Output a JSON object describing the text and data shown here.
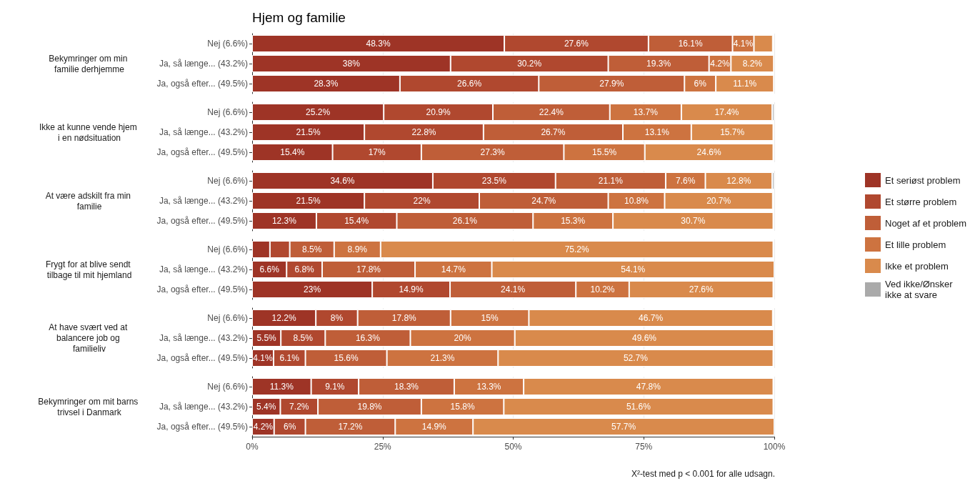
{
  "chart_data": [
    {
      "type": "bar",
      "orientation": "horizontal",
      "stacked": true,
      "title": "Hjem og familie",
      "ylabel": "Bekymringer om min familie derhjemme",
      "categories": [
        "Nej (6.6%)",
        "Ja, så længe... (43.2%)",
        "Ja, også efter... (49.5%)"
      ],
      "xlim": [
        0,
        100
      ],
      "xticks": [
        0,
        25,
        50,
        75,
        100
      ],
      "tick_labels": "y",
      "grid": "x",
      "legend": "right",
      "series": [
        {
          "name": "Et seriøst problem",
          "color": "#9e3426",
          "values": [
            48.3,
            38,
            28.3
          ],
          "value_labels": [
            "48.3%",
            "38%",
            "28.3%"
          ]
        },
        {
          "name": "Et større problem",
          "color": "#b0482f",
          "values": [
            27.6,
            30.2,
            26.6
          ],
          "value_labels": [
            "27.6%",
            "30.2%",
            "26.6%"
          ]
        },
        {
          "name": "Noget af et problem",
          "color": "#bf5e38",
          "values": [
            16.1,
            19.3,
            27.9
          ],
          "value_labels": [
            "16.1%",
            "19.3%",
            "27.9%"
          ]
        },
        {
          "name": "Et lille problem",
          "color": "#cd7340",
          "values": [
            4.1,
            4.2,
            6
          ],
          "value_labels": [
            "4.1%",
            "4.2%",
            "6%"
          ]
        },
        {
          "name": "Ikke et problem",
          "color": "#d98a4c",
          "values": [
            3.6,
            8.2,
            11.1
          ],
          "value_labels": [
            null,
            "8.2%",
            "11.1%"
          ]
        },
        {
          "name": "Ved ikke/Ønsker ikke at svare",
          "color": "#aaaaaa",
          "values": [
            null,
            null,
            null
          ],
          "value_labels": [
            null,
            null,
            null
          ]
        }
      ]
    },
    {
      "type": "bar",
      "orientation": "horizontal",
      "stacked": true,
      "ylabel": "Ikke at kunne vende hjem i en nødsituation",
      "categories": [
        "Nej (6.6%)",
        "Ja, så længe... (43.2%)",
        "Ja, også efter... (49.5%)"
      ],
      "xlim": [
        0,
        100
      ],
      "xticks": [
        0,
        25,
        50,
        75,
        100
      ],
      "tick_labels": "y",
      "grid": "x",
      "series": [
        {
          "color": "#9e3426",
          "values": [
            25.2,
            21.5,
            15.4
          ],
          "value_labels": [
            "25.2%",
            "21.5%",
            "15.4%"
          ]
        },
        {
          "color": "#b0482f",
          "values": [
            20.9,
            22.8,
            17
          ],
          "value_labels": [
            "20.9%",
            "22.8%",
            "17%"
          ]
        },
        {
          "color": "#bf5e38",
          "values": [
            22.4,
            26.7,
            27.3
          ],
          "value_labels": [
            "22.4%",
            "26.7%",
            "27.3%"
          ]
        },
        {
          "color": "#cd7340",
          "values": [
            13.7,
            13.1,
            15.5
          ],
          "value_labels": [
            "13.7%",
            "13.1%",
            "15.5%"
          ]
        },
        {
          "color": "#d98a4c",
          "values": [
            17.4,
            15.7,
            24.6
          ],
          "value_labels": [
            "17.4%",
            "15.7%",
            "24.6%"
          ]
        },
        {
          "color": "#aaaaaa",
          "values": [
            0.4,
            null,
            null
          ],
          "value_labels": [
            null,
            null,
            null
          ]
        }
      ]
    },
    {
      "type": "bar",
      "orientation": "horizontal",
      "stacked": true,
      "ylabel": "At være adskilt fra min familie",
      "categories": [
        "Nej (6.6%)",
        "Ja, så længe... (43.2%)",
        "Ja, også efter... (49.5%)"
      ],
      "xlim": [
        0,
        100
      ],
      "xticks": [
        0,
        25,
        50,
        75,
        100
      ],
      "tick_labels": "y",
      "grid": "x",
      "series": [
        {
          "color": "#9e3426",
          "values": [
            34.6,
            21.5,
            12.3
          ],
          "value_labels": [
            "34.6%",
            "21.5%",
            "12.3%"
          ]
        },
        {
          "color": "#b0482f",
          "values": [
            23.5,
            22,
            15.4
          ],
          "value_labels": [
            "23.5%",
            "22%",
            "15.4%"
          ]
        },
        {
          "color": "#bf5e38",
          "values": [
            21.1,
            24.7,
            26.1
          ],
          "value_labels": [
            "21.1%",
            "24.7%",
            "26.1%"
          ]
        },
        {
          "color": "#cd7340",
          "values": [
            7.6,
            10.8,
            15.3
          ],
          "value_labels": [
            "7.6%",
            "10.8%",
            "15.3%"
          ]
        },
        {
          "color": "#d98a4c",
          "values": [
            12.8,
            20.7,
            30.7
          ],
          "value_labels": [
            "12.8%",
            "20.7%",
            "30.7%"
          ]
        },
        {
          "color": "#aaaaaa",
          "values": [
            0.4,
            null,
            null
          ],
          "value_labels": [
            null,
            null,
            null
          ]
        }
      ]
    },
    {
      "type": "bar",
      "orientation": "horizontal",
      "stacked": true,
      "ylabel": "Frygt for at blive sendt tilbage til mit hjemland",
      "categories": [
        "Nej (6.6%)",
        "Ja, så længe... (43.2%)",
        "Ja, også efter... (49.5%)"
      ],
      "xlim": [
        0,
        100
      ],
      "xticks": [
        0,
        25,
        50,
        75,
        100
      ],
      "tick_labels": "y",
      "grid": "x",
      "series": [
        {
          "color": "#9e3426",
          "values": [
            3.4,
            6.6,
            23
          ],
          "value_labels": [
            null,
            "6.6%",
            "23%"
          ]
        },
        {
          "color": "#b0482f",
          "values": [
            3.8,
            6.8,
            14.9
          ],
          "value_labels": [
            null,
            "6.8%",
            "14.9%"
          ]
        },
        {
          "color": "#bf5e38",
          "values": [
            8.5,
            17.8,
            24.1
          ],
          "value_labels": [
            "8.5%",
            "17.8%",
            "24.1%"
          ]
        },
        {
          "color": "#cd7340",
          "values": [
            8.9,
            14.7,
            10.2
          ],
          "value_labels": [
            "8.9%",
            "14.7%",
            "10.2%"
          ]
        },
        {
          "color": "#d98a4c",
          "values": [
            75.2,
            54.1,
            27.6
          ],
          "value_labels": [
            "75.2%",
            "54.1%",
            "27.6%"
          ]
        },
        {
          "color": "#aaaaaa",
          "values": [
            null,
            null,
            null
          ],
          "value_labels": [
            null,
            null,
            null
          ]
        }
      ]
    },
    {
      "type": "bar",
      "orientation": "horizontal",
      "stacked": true,
      "ylabel": "At have svært ved at balancere job og familieliv",
      "categories": [
        "Nej (6.6%)",
        "Ja, så længe... (43.2%)",
        "Ja, også efter... (49.5%)"
      ],
      "xlim": [
        0,
        100
      ],
      "xticks": [
        0,
        25,
        50,
        75,
        100
      ],
      "tick_labels": "y",
      "grid": "x",
      "series": [
        {
          "color": "#9e3426",
          "values": [
            12.2,
            5.5,
            4.1
          ],
          "value_labels": [
            "12.2%",
            "5.5%",
            "4.1%"
          ]
        },
        {
          "color": "#b0482f",
          "values": [
            8,
            8.5,
            6.1
          ],
          "value_labels": [
            "8%",
            "8.5%",
            "6.1%"
          ]
        },
        {
          "color": "#bf5e38",
          "values": [
            17.8,
            16.3,
            15.6
          ],
          "value_labels": [
            "17.8%",
            "16.3%",
            "15.6%"
          ]
        },
        {
          "color": "#cd7340",
          "values": [
            15,
            20,
            21.3
          ],
          "value_labels": [
            "15%",
            "20%",
            "21.3%"
          ]
        },
        {
          "color": "#d98a4c",
          "values": [
            46.7,
            49.6,
            52.7
          ],
          "value_labels": [
            "46.7%",
            "49.6%",
            "52.7%"
          ]
        },
        {
          "color": "#aaaaaa",
          "values": [
            null,
            null,
            null
          ],
          "value_labels": [
            null,
            null,
            null
          ]
        }
      ]
    },
    {
      "type": "bar",
      "orientation": "horizontal",
      "stacked": true,
      "ylabel": "Bekymringer om mit barns trivsel i Danmark",
      "categories": [
        "Nej (6.6%)",
        "Ja, så længe... (43.2%)",
        "Ja, også efter... (49.5%)"
      ],
      "xlim": [
        0,
        100
      ],
      "xticks": [
        {
          "value": 0,
          "label": "0%"
        },
        {
          "value": 25,
          "label": "25%"
        },
        {
          "value": 50,
          "label": "50%"
        },
        {
          "value": 75,
          "label": "75%"
        },
        {
          "value": 100,
          "label": "100%"
        }
      ],
      "grid": "x",
      "annotations": [
        "X²-test med p < 0.001 for alle udsagn."
      ],
      "series": [
        {
          "color": "#9e3426",
          "values": [
            11.3,
            5.4,
            4.2
          ],
          "value_labels": [
            "11.3%",
            "5.4%",
            "4.2%"
          ]
        },
        {
          "color": "#b0482f",
          "values": [
            9.1,
            7.2,
            6
          ],
          "value_labels": [
            "9.1%",
            "7.2%",
            "6%"
          ]
        },
        {
          "color": "#bf5e38",
          "values": [
            18.3,
            19.8,
            17.2
          ],
          "value_labels": [
            "18.3%",
            "19.8%",
            "17.2%"
          ]
        },
        {
          "color": "#cd7340",
          "values": [
            13.3,
            15.8,
            14.9
          ],
          "value_labels": [
            "13.3%",
            "15.8%",
            "14.9%"
          ]
        },
        {
          "color": "#d98a4c",
          "values": [
            47.8,
            51.6,
            57.7
          ],
          "value_labels": [
            "47.8%",
            "51.6%",
            "57.7%"
          ]
        },
        {
          "color": "#aaaaaa",
          "values": [
            null,
            null,
            null
          ],
          "value_labels": [
            null,
            null,
            null
          ]
        }
      ]
    }
  ]
}
